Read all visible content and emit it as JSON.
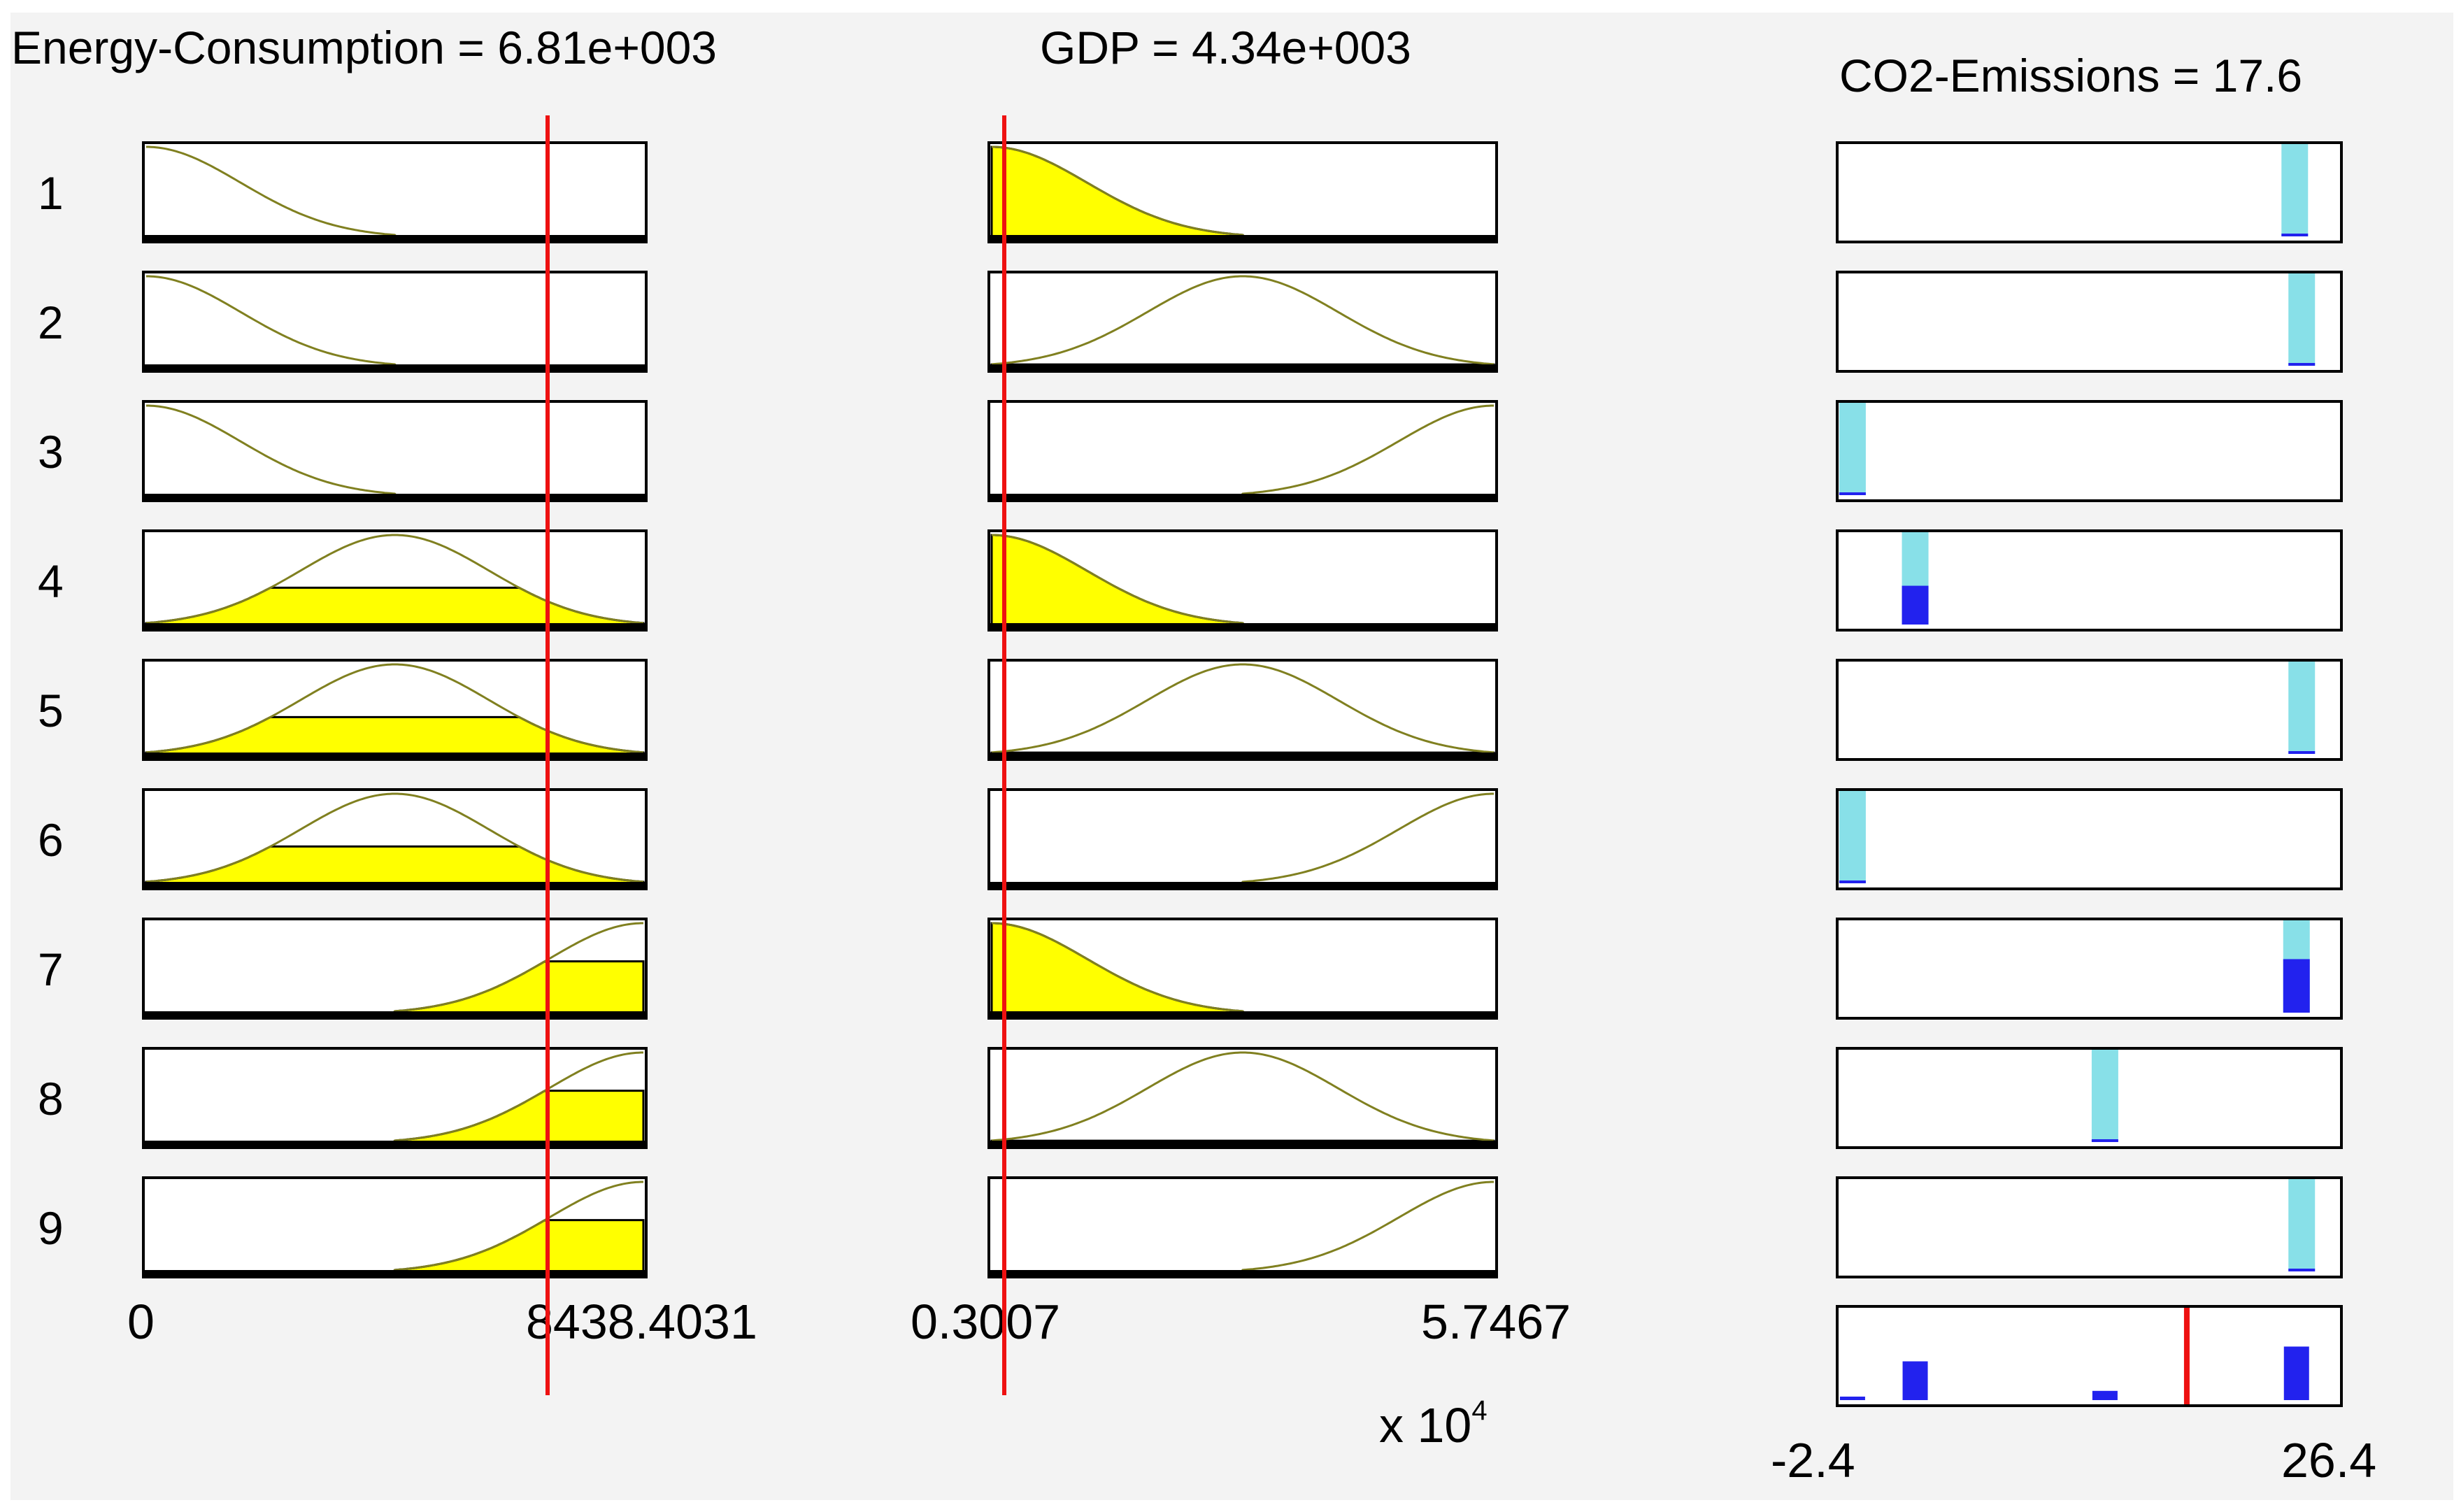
{
  "headers": {
    "energy": "Energy-Consumption = 6.81e+003",
    "gdp": "GDP = 4.34e+003",
    "co2": "CO2-Emissions = 17.6"
  },
  "row_labels": [
    "1",
    "2",
    "3",
    "4",
    "5",
    "6",
    "7",
    "8",
    "9"
  ],
  "axes": {
    "energy_min": "0",
    "energy_max": "8438.4031",
    "gdp_min": "0.3007",
    "gdp_max": "5.7467",
    "gdp_scale": "x 10",
    "gdp_scale_exp": "4",
    "co2_min": "-2.4",
    "co2_max": "26.4"
  },
  "inputs": {
    "energy_value": 6810,
    "energy_range": [
      0,
      8438.4031
    ],
    "gdp_value": 4340,
    "gdp_range": [
      3007,
      57467
    ],
    "co2_output": 17.6,
    "co2_range": [
      -2.4,
      26.4
    ]
  },
  "rules": [
    {
      "energy_mf": "low",
      "gdp_mf": "low",
      "energy_firing": 0.0,
      "gdp_firing": 1.0,
      "co2_peak": 23.8,
      "strength": 0.0
    },
    {
      "energy_mf": "low",
      "gdp_mf": "medium",
      "energy_firing": 0.0,
      "gdp_firing": 0.03,
      "co2_peak": 24.2,
      "strength": 0.0
    },
    {
      "energy_mf": "low",
      "gdp_mf": "high",
      "energy_firing": 0.0,
      "gdp_firing": 0.0,
      "co2_peak": -1.6,
      "strength": 0.0
    },
    {
      "energy_mf": "medium",
      "gdp_mf": "low",
      "energy_firing": 0.42,
      "gdp_firing": 1.0,
      "co2_peak": 2.0,
      "strength": 0.42
    },
    {
      "energy_mf": "medium",
      "gdp_mf": "medium",
      "energy_firing": 0.42,
      "gdp_firing": 0.03,
      "co2_peak": 24.2,
      "strength": 0.03
    },
    {
      "energy_mf": "medium",
      "gdp_mf": "high",
      "energy_firing": 0.42,
      "gdp_firing": 0.0,
      "co2_peak": -1.6,
      "strength": 0.0
    },
    {
      "energy_mf": "high",
      "gdp_mf": "low",
      "energy_firing": 0.58,
      "gdp_firing": 1.0,
      "co2_peak": 23.9,
      "strength": 0.58
    },
    {
      "energy_mf": "high",
      "gdp_mf": "medium",
      "energy_firing": 0.58,
      "gdp_firing": 0.03,
      "co2_peak": 12.9,
      "strength": 0.03
    },
    {
      "energy_mf": "high",
      "gdp_mf": "high",
      "energy_firing": 0.58,
      "gdp_firing": 0.0,
      "co2_peak": 24.2,
      "strength": 0.0
    }
  ],
  "aggregate": [
    {
      "co2": -1.6,
      "strength": 0.03
    },
    {
      "co2": 2.0,
      "strength": 0.42
    },
    {
      "co2": 12.9,
      "strength": 0.1
    },
    {
      "co2": 23.9,
      "strength": 0.58
    }
  ],
  "colors": {
    "background": "#f3f3f3",
    "mf_curve": "#808020",
    "fill_input": "#ffff00",
    "fill_output": "#2222ee",
    "output_bar": "#88e0e8",
    "indicator": "#ee1111"
  }
}
